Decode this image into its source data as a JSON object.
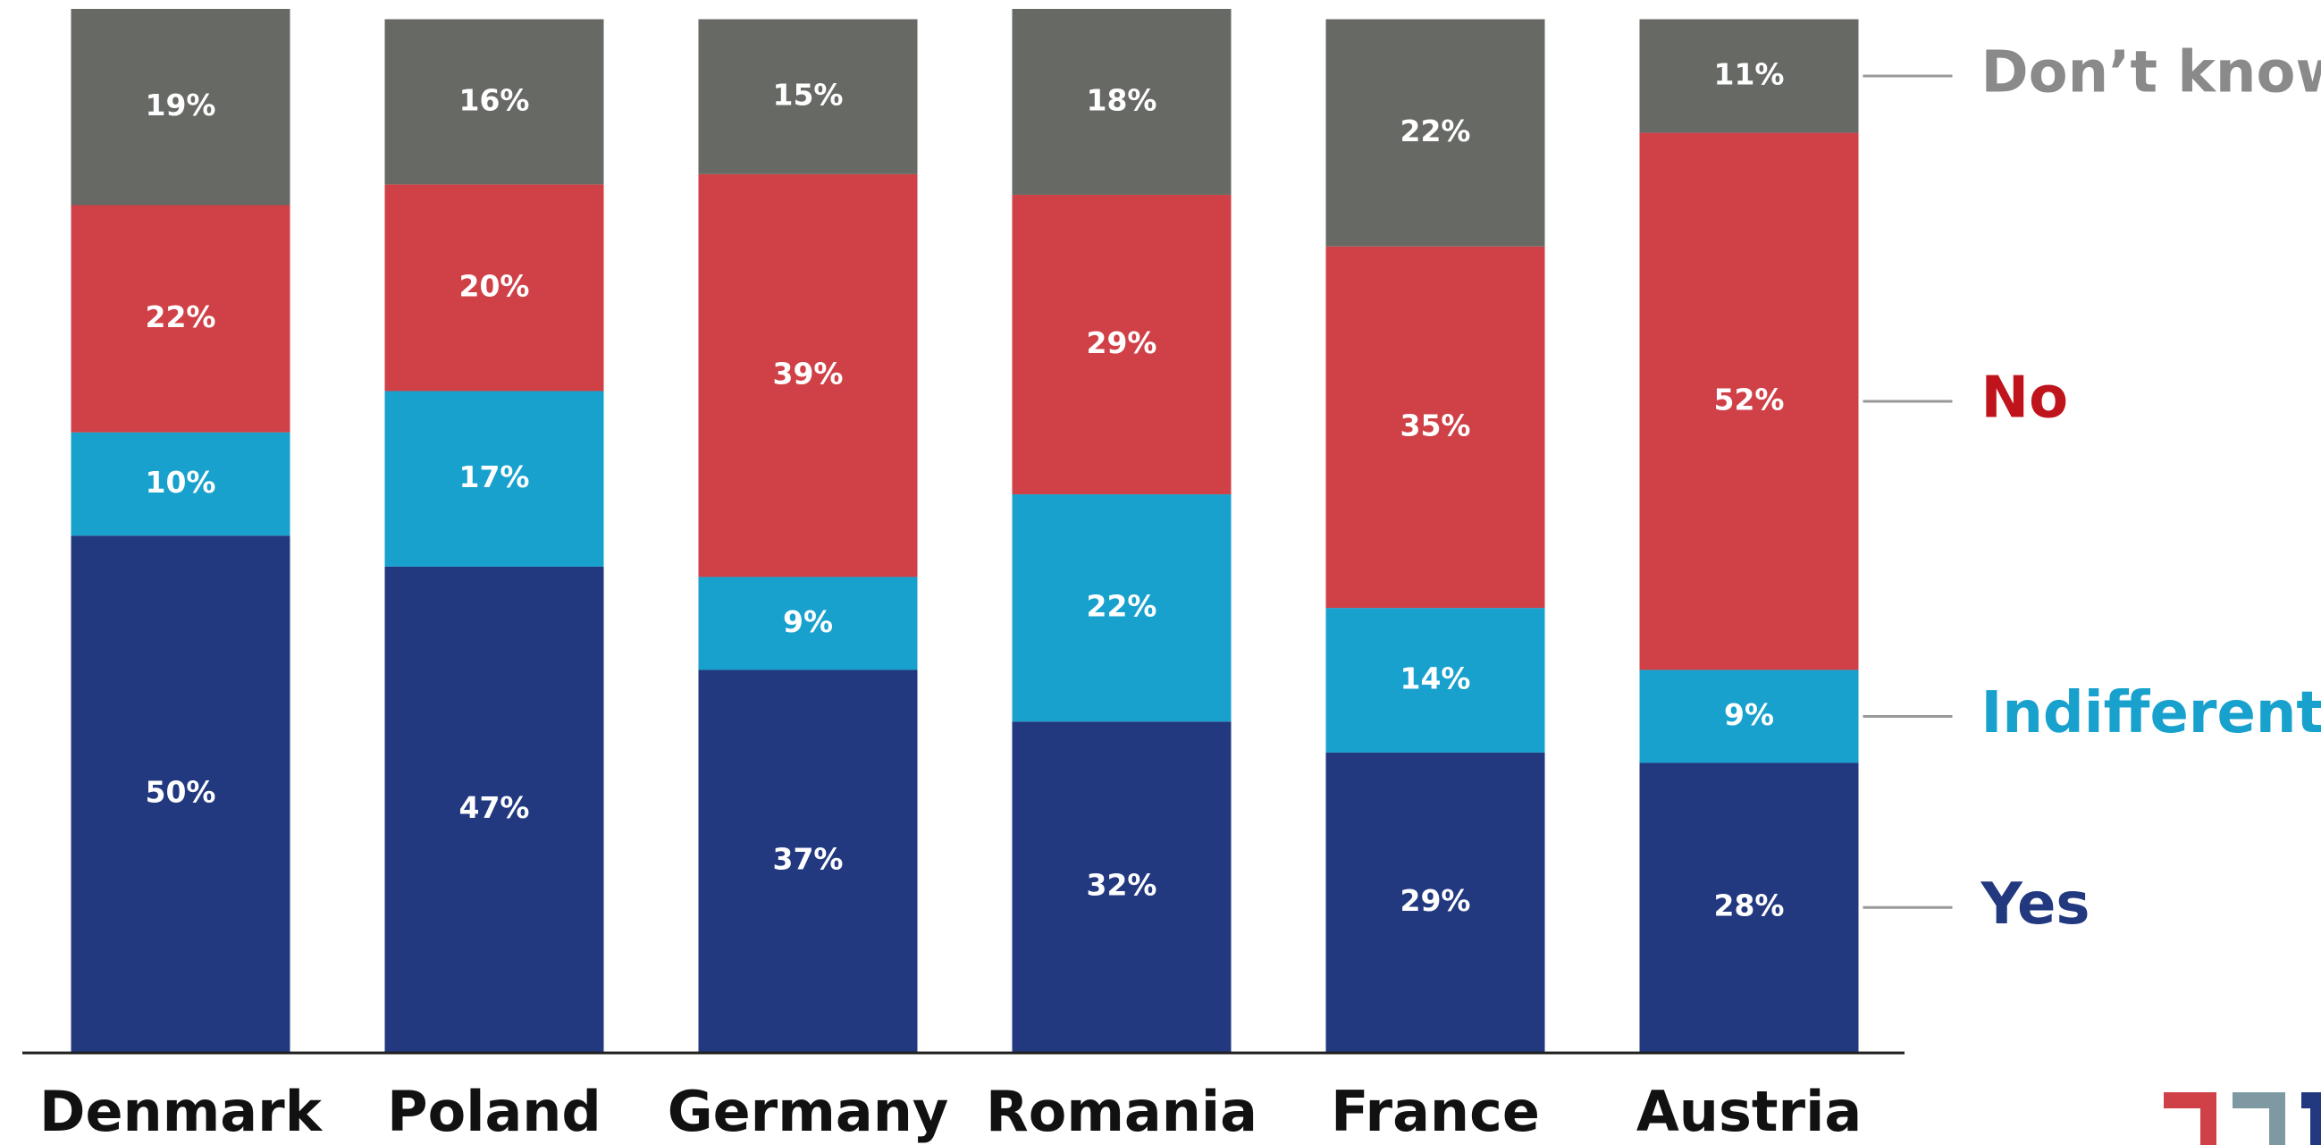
{
  "chart_data": {
    "type": "stacked_bar",
    "categories": [
      "Denmark",
      "Poland",
      "Germany",
      "Romania",
      "France",
      "Austria"
    ],
    "series": [
      {
        "name": "Yes",
        "color": "#22387f",
        "label_color": "#22387f",
        "values": [
          50,
          47,
          37,
          32,
          29,
          28
        ],
        "value_labels": [
          "50%",
          "47%",
          "37%",
          "32%",
          "29%",
          "28%"
        ]
      },
      {
        "name": "Indifferent",
        "color": "#18a1cd",
        "label_color": "#18a1cd",
        "values": [
          10,
          17,
          9,
          22,
          14,
          9
        ],
        "value_labels": [
          "10%",
          "17%",
          "9%",
          "22%",
          "14%",
          "9%"
        ]
      },
      {
        "name": "No",
        "color": "#d04047",
        "label_color": "#c0141c",
        "values": [
          22,
          20,
          39,
          29,
          35,
          52
        ],
        "value_labels": [
          "22%",
          "20%",
          "39%",
          "29%",
          "35%",
          "52%"
        ]
      },
      {
        "name": "Don’t know",
        "color": "#676964",
        "label_color": "#8a8a8a",
        "values": [
          19,
          16,
          15,
          18,
          22,
          11
        ],
        "value_labels": [
          "19%",
          "16%",
          "15%",
          "18%",
          "22%",
          "11%"
        ]
      }
    ],
    "ylim": [
      0,
      100
    ],
    "legend": "right"
  }
}
